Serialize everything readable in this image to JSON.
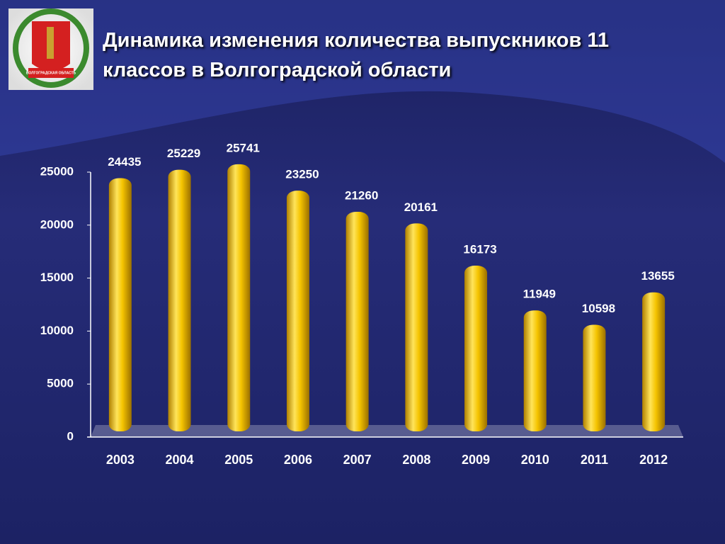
{
  "chart_data": {
    "type": "bar",
    "title": "Динамика изменения количества выпускников 11 классов в Волгоградской области",
    "emblem_text": "ВОЛГОГРАДСКАЯ ОБЛАСТЬ",
    "categories": [
      "2003",
      "2004",
      "2005",
      "2006",
      "2007",
      "2008",
      "2009",
      "2010",
      "2011",
      "2012"
    ],
    "values": [
      24435,
      25229,
      25741,
      23250,
      21260,
      20161,
      16173,
      11949,
      10598,
      13655
    ],
    "color": "#f2c200",
    "ylim": [
      0,
      25000
    ],
    "yticks": [
      0,
      5000,
      10000,
      15000,
      20000,
      25000
    ],
    "grid": false
  }
}
